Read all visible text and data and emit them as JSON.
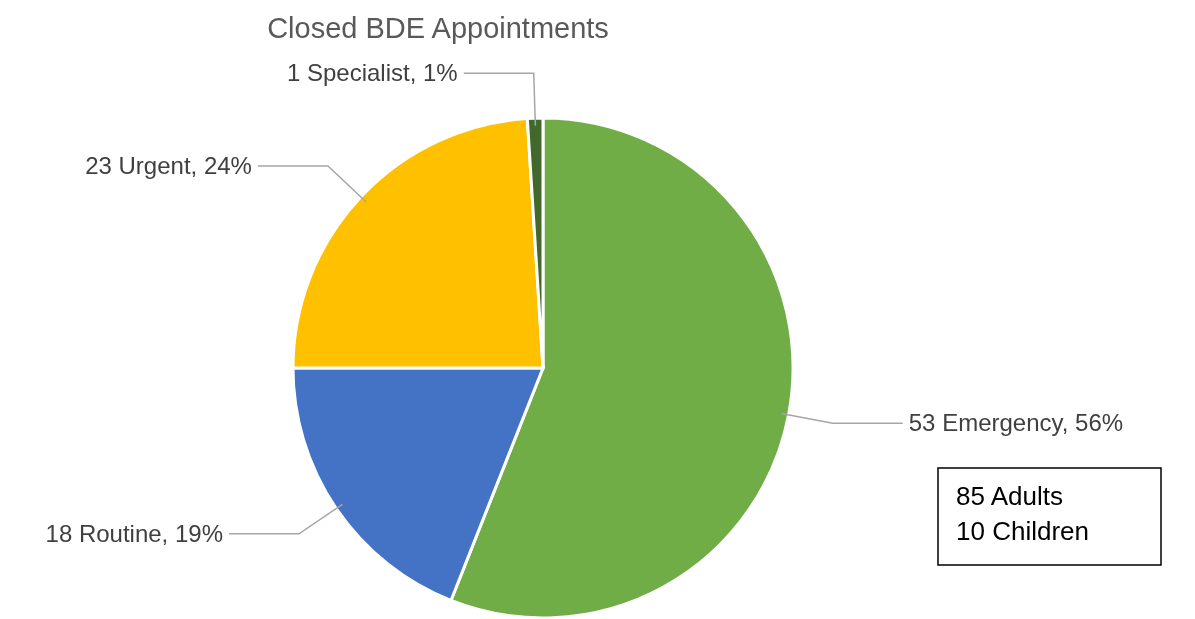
{
  "chart_data": {
    "type": "pie",
    "title": "Closed BDE Appointments",
    "categories": [
      "53 Emergency, 56%",
      "18 Routine, 19%",
      "23 Urgent, 24%",
      "1 Specialist, 1%"
    ],
    "values": [
      56,
      19,
      24,
      1
    ],
    "colors": [
      "#70ad47",
      "#4472c4",
      "#ffc000",
      "#43682b"
    ],
    "legend": false,
    "annotations": [
      "85 Adults",
      "10 Children"
    ]
  }
}
